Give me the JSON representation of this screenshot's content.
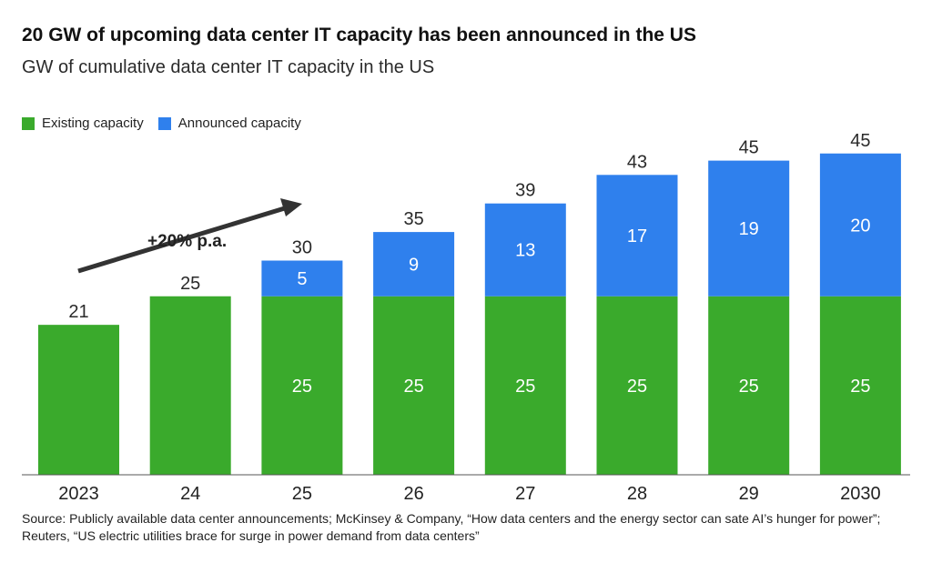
{
  "chart_data": {
    "type": "bar",
    "stacked": true,
    "title": "20 GW of upcoming data center IT capacity has been announced in the US",
    "subtitle": "GW of cumulative data center IT capacity in the US",
    "categories": [
      "2023",
      "24",
      "25",
      "26",
      "27",
      "28",
      "29",
      "2030"
    ],
    "series": [
      {
        "name": "Existing capacity",
        "color": "#3aaa2c",
        "values": [
          21,
          25,
          25,
          25,
          25,
          25,
          25,
          25
        ]
      },
      {
        "name": "Announced capacity",
        "color": "#2f80ed",
        "values": [
          0,
          0,
          5,
          9,
          13,
          17,
          19,
          20
        ]
      }
    ],
    "totals": [
      "21",
      "25",
      "30",
      "35",
      "39",
      "43",
      "45",
      "45"
    ],
    "segment_labels": {
      "existing": [
        null,
        null,
        "25",
        "25",
        "25",
        "25",
        "25",
        "25"
      ],
      "announced": [
        null,
        null,
        "5",
        "9",
        "13",
        "17",
        "19",
        "20"
      ]
    },
    "ylim": [
      0,
      45
    ],
    "xlabel": "",
    "ylabel": "",
    "annotation": "+20% p.a.",
    "source": "Source: Publicly available data center announcements; McKinsey & Company, “How data centers and the energy sector can sate AI’s hunger for power”; Reuters, “US electric utilities brace for surge in power demand from data centers”"
  }
}
